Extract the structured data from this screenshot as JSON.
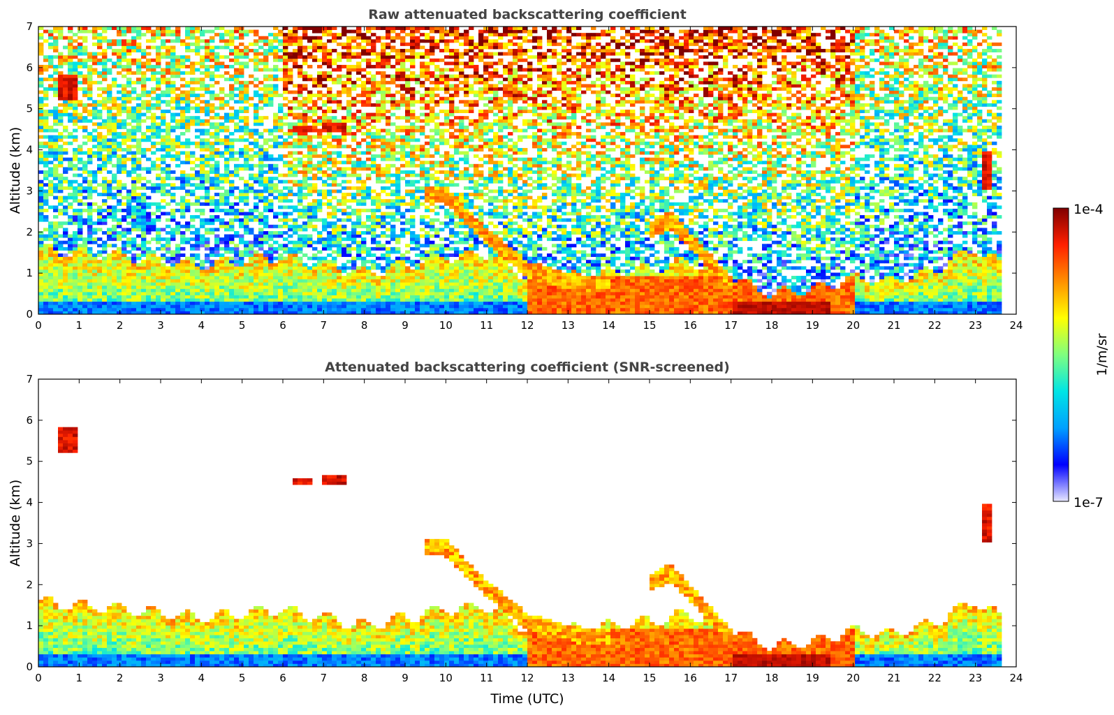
{
  "chart_data": [
    {
      "type": "heatmap",
      "title": "Raw attenuated backscattering coefficient",
      "xlabel": "",
      "ylabel": "Altitude (km)",
      "xlim": [
        0,
        24
      ],
      "ylim": [
        0,
        7
      ],
      "xticks": [
        "0",
        "1",
        "2",
        "3",
        "4",
        "5",
        "6",
        "7",
        "8",
        "9",
        "10",
        "11",
        "12",
        "13",
        "14",
        "15",
        "16",
        "17",
        "18",
        "19",
        "20",
        "21",
        "22",
        "23",
        "24"
      ],
      "yticks": [
        "0",
        "1",
        "2",
        "3",
        "4",
        "5",
        "6",
        "7"
      ],
      "data_end_time": 23.6,
      "grid": false,
      "features": [
        {
          "kind": "boundary_layer",
          "t": [
            0,
            2,
            4,
            6,
            8,
            10,
            11,
            12,
            13,
            14,
            15,
            16,
            17,
            18,
            19,
            20,
            21,
            22,
            23,
            23.6
          ],
          "top_km": [
            1.6,
            1.4,
            1.2,
            1.4,
            1.0,
            1.4,
            1.5,
            0.9,
            0.9,
            1.0,
            1.1,
            1.3,
            0.9,
            0.5,
            0.6,
            0.9,
            0.8,
            1.1,
            1.6,
            1.2
          ]
        },
        {
          "kind": "residual_layer",
          "t": [
            9.5,
            10,
            11,
            12,
            13,
            14
          ],
          "alt_km": [
            2.9,
            2.9,
            1.9,
            1.1,
            0.8,
            0.7
          ]
        },
        {
          "kind": "elevated_layer",
          "t": [
            15,
            15.5,
            16,
            17
          ],
          "alt_km": [
            2.0,
            2.3,
            1.8,
            0.7
          ]
        },
        {
          "kind": "cloud",
          "t": [
            0.5,
            1.0
          ],
          "alt_km": [
            5.2,
            5.8
          ]
        },
        {
          "kind": "cloud",
          "t": [
            6.9,
            7.5
          ],
          "alt_km": [
            4.4,
            4.7
          ]
        },
        {
          "kind": "cloud",
          "t": [
            6.3,
            6.7
          ],
          "alt_km": [
            4.45,
            4.6
          ]
        },
        {
          "kind": "cloud",
          "t": [
            23.2,
            23.4
          ],
          "alt_km": [
            3.0,
            4.0
          ]
        }
      ]
    },
    {
      "type": "heatmap",
      "title": "Attenuated backscattering coefficient (SNR-screened)",
      "xlabel": "Time (UTC)",
      "ylabel": "Altitude (km)",
      "xlim": [
        0,
        24
      ],
      "ylim": [
        0,
        7
      ],
      "xticks": [
        "0",
        "1",
        "2",
        "3",
        "4",
        "5",
        "6",
        "7",
        "8",
        "9",
        "10",
        "11",
        "12",
        "13",
        "14",
        "15",
        "16",
        "17",
        "18",
        "19",
        "20",
        "21",
        "22",
        "23",
        "24"
      ],
      "yticks": [
        "0",
        "1",
        "2",
        "3",
        "4",
        "5",
        "6",
        "7"
      ],
      "data_end_time": 23.6,
      "grid": false
    }
  ],
  "colorbar": {
    "label": "1/m/sr",
    "min_label": "1e-7",
    "max_label": "1e-4",
    "scale": "log",
    "colors": [
      "#e8e8ff",
      "#0000ff",
      "#00a0ff",
      "#00e5e5",
      "#7fff7f",
      "#ffff00",
      "#ff9000",
      "#ff2000",
      "#800000"
    ]
  }
}
